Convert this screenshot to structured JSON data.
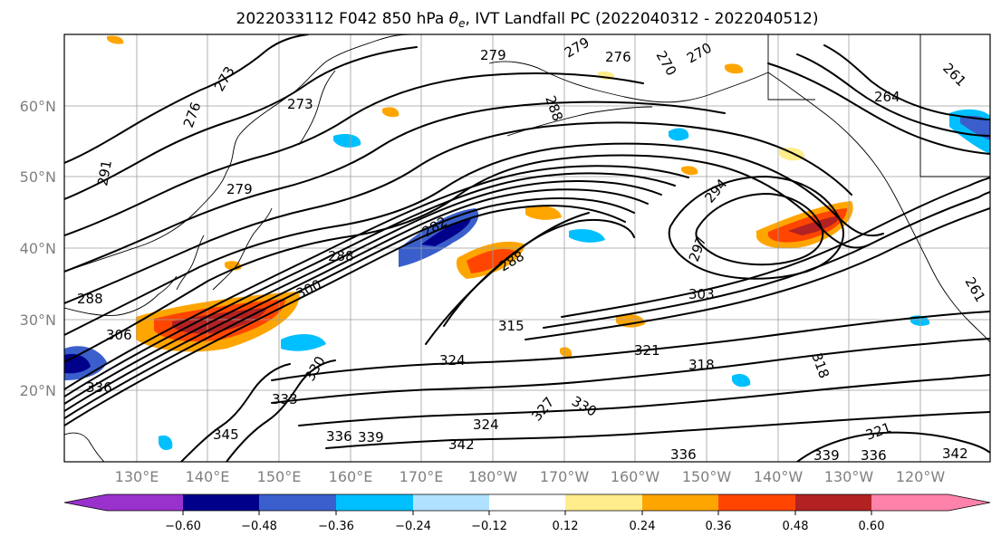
{
  "map": {
    "title_parts": {
      "prefix": "2022033112 F042 850 hPa ",
      "theta": "θ",
      "sub": "e",
      "suffix": ", IVT Landfall PC (2022040312 - 2022040512)"
    },
    "lon_ticks": [
      "130°E",
      "140°E",
      "150°E",
      "160°E",
      "170°E",
      "180°W",
      "170°W",
      "160°W",
      "150°W",
      "140°W",
      "130°W",
      "120°W"
    ],
    "lat_ticks": [
      "20°N",
      "30°N",
      "40°N",
      "50°N",
      "60°N"
    ],
    "colorbar": {
      "colors": [
        "#9932cc",
        "#00008b",
        "#3a5fcd",
        "#00bfff",
        "#b0e2ff",
        "#ffffff",
        "#ffec8b",
        "#ffa500",
        "#ff4500",
        "#b22222",
        "#ff82ab"
      ],
      "tick_labels": [
        "−0.60",
        "−0.48",
        "−0.36",
        "−0.24",
        "−0.12",
        "0.12",
        "0.24",
        "0.36",
        "0.48",
        "0.60"
      ],
      "extend": "both"
    },
    "contour_labels": [
      "279",
      "279",
      "276",
      "270",
      "270",
      "273",
      "273",
      "276",
      "288",
      "264",
      "261",
      "291",
      "279",
      "294",
      "297",
      "288",
      "282",
      "288",
      "303",
      "300",
      "306",
      "315",
      "321",
      "318",
      "318",
      "324",
      "330",
      "333",
      "336",
      "330",
      "342",
      "345",
      "336",
      "339",
      "327",
      "324",
      "336",
      "336",
      "321",
      "342",
      "339",
      "288",
      "261"
    ]
  }
}
